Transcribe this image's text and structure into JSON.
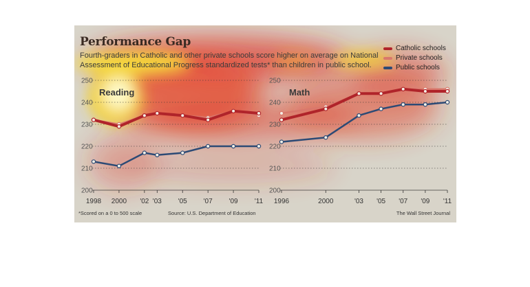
{
  "title": "Performance Gap",
  "subtitle": "Fourth-graders in Catholic and other private schools score higher on average on National Assessment of Educational Progress standardized tests* than children in public school.",
  "legend": [
    "Catholic schools",
    "Private schools",
    "Public schools"
  ],
  "footnote": "*Scored on a 0 to 500 scale",
  "source": "Source: U.S. Department of Education",
  "credit": "The Wall Street Journal",
  "colors": {
    "catholic": "#b0242a",
    "private": "#d9786c",
    "public": "#2c4a75",
    "background": "#d8d4c9",
    "gridline": "#333333"
  },
  "chart_data": [
    {
      "type": "line",
      "title": "Reading",
      "x_tick_labels": [
        "1998",
        "2000",
        "'02",
        "'03",
        "'05",
        "'07",
        "'09",
        "'11"
      ],
      "x": [
        1998,
        2000,
        2002,
        2003,
        2005,
        2007,
        2009,
        2011
      ],
      "ylim": [
        200,
        250
      ],
      "y_ticks": [
        200,
        210,
        220,
        230,
        240,
        250
      ],
      "grid": "dotted horizontal",
      "series": [
        {
          "name": "Catholic schools",
          "values": [
            232,
            229,
            234,
            235,
            234,
            232,
            236,
            235
          ]
        },
        {
          "name": "Private schools",
          "values": [
            232,
            230,
            234,
            235,
            234,
            233,
            236,
            234
          ]
        },
        {
          "name": "Public schools",
          "values": [
            213,
            211,
            217,
            216,
            217,
            220,
            220,
            220
          ]
        }
      ]
    },
    {
      "type": "line",
      "title": "Math",
      "x_tick_labels": [
        "1996",
        "2000",
        "'03",
        "'05",
        "'07",
        "'09",
        "'11"
      ],
      "x": [
        1996,
        2000,
        2003,
        2005,
        2007,
        2009,
        2011
      ],
      "ylim": [
        200,
        250
      ],
      "y_ticks": [
        200,
        210,
        220,
        230,
        240,
        250
      ],
      "grid": "dotted horizontal",
      "series": [
        {
          "name": "Catholic schools",
          "values": [
            232,
            237,
            244,
            244,
            246,
            245,
            245
          ]
        },
        {
          "name": "Private schools",
          "values": [
            235,
            238,
            244,
            244,
            246,
            246,
            246
          ]
        },
        {
          "name": "Public schools",
          "values": [
            222,
            224,
            234,
            237,
            239,
            239,
            240
          ]
        }
      ]
    }
  ]
}
